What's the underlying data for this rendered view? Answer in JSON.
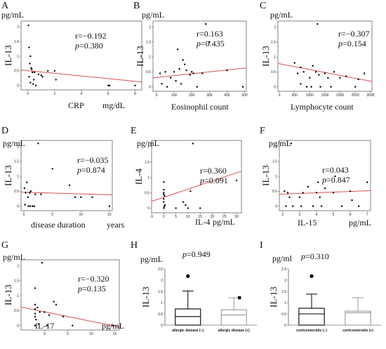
{
  "chart_data": [
    {
      "type": "scatter",
      "panel": "A",
      "ylabel": "IL-13",
      "yunit": "pg/mL",
      "xlabel": "CRP",
      "xunit": "mg/dL",
      "r": "r=−0.192",
      "p": "=0.380",
      "xlim": [
        -0.5,
        8.5
      ],
      "ylim": [
        -0.15,
        2.2
      ],
      "xticks": [
        "0",
        "2",
        "4",
        "6",
        "8"
      ],
      "yticks": [
        "0",
        "0.5",
        "1",
        "1.5",
        "2"
      ],
      "xtick_values": [
        0,
        2,
        4,
        6,
        8
      ],
      "fit": [
        [
          -0.5,
          0.53
        ],
        [
          8.5,
          0.12
        ]
      ],
      "x": [
        0.05,
        0.1,
        0.2,
        0.15,
        0.3,
        0.35,
        0.5,
        0.1,
        0.2,
        0.6,
        0.4,
        0.8,
        1.0,
        1.1,
        1.5,
        2.0,
        2.1,
        6.0,
        6.1,
        8.0,
        0.25,
        0.45
      ],
      "y": [
        2.05,
        1.3,
        1.0,
        0.75,
        0.55,
        0.45,
        0.45,
        0.3,
        0.1,
        0.0,
        0.05,
        0.38,
        0.35,
        0.3,
        0.5,
        0.5,
        0.2,
        0.0,
        0.0,
        0.0,
        0.6,
        0.2
      ]
    },
    {
      "type": "scatter",
      "panel": "B",
      "ylabel": "IL-13",
      "yunit": "pg/mL",
      "xlabel": "Eosinophil count",
      "xunit": "",
      "r": "r=0.163",
      "p": "=0.435",
      "xlim": [
        -20,
        510
      ],
      "ylim": [
        -0.15,
        2.2
      ],
      "xticks": [
        "0",
        "100",
        "200",
        "300",
        "400",
        "500"
      ],
      "yticks": [
        "0",
        "0.5",
        "1",
        "1.5",
        "2"
      ],
      "xtick_values": [
        0,
        100,
        200,
        300,
        400,
        500
      ],
      "fit": [
        [
          -20,
          0.3
        ],
        [
          510,
          0.63
        ]
      ],
      "x": [
        20,
        30,
        50,
        60,
        80,
        100,
        110,
        120,
        130,
        140,
        150,
        160,
        170,
        190,
        200,
        210,
        230,
        260,
        280,
        300,
        400,
        490
      ],
      "y": [
        0.45,
        0.1,
        0.5,
        0.0,
        0.3,
        0.5,
        0.2,
        1.25,
        0.6,
        0.1,
        0.9,
        0.75,
        0.55,
        0.4,
        0.5,
        0.45,
        0.0,
        0.45,
        2.1,
        1.5,
        0.55,
        0.0
      ]
    },
    {
      "type": "scatter",
      "panel": "C",
      "ylabel": "IL-13",
      "yunit": "pg/mL",
      "xlabel": "Lymphocyte count",
      "xunit": "",
      "r": "r=−0.307",
      "p": "=0.154",
      "xlim": [
        -50,
        3050
      ],
      "ylim": [
        -0.15,
        2.2
      ],
      "xticks": [
        "0",
        "500",
        "1000",
        "1500",
        "2000",
        "2500",
        "3000"
      ],
      "yticks": [
        "0",
        "0.5",
        "1",
        "1.5",
        "2"
      ],
      "xtick_values": [
        0,
        500,
        1000,
        1500,
        2000,
        2500,
        3000
      ],
      "fit": [
        [
          -50,
          0.78
        ],
        [
          3050,
          0.18
        ]
      ],
      "x": [
        500,
        600,
        700,
        800,
        900,
        1000,
        1100,
        1200,
        1250,
        1300,
        1350,
        1500,
        1600,
        1700,
        1800,
        2000,
        2200,
        2500,
        2600,
        2800,
        700,
        1050
      ],
      "y": [
        0.8,
        0.45,
        0.65,
        0.5,
        0.0,
        0.3,
        0.7,
        0.5,
        2.1,
        0.4,
        0.0,
        0.45,
        0.3,
        0.0,
        0.5,
        0.3,
        0.35,
        0.0,
        0.25,
        0.45,
        0.1,
        0.0
      ]
    },
    {
      "type": "scatter",
      "panel": "D",
      "ylabel": "IL-13",
      "yunit": "pg/mL",
      "xlabel": "disease duration",
      "xunit": "years",
      "r": "r=−0.035",
      "p": "=0.874",
      "xlim": [
        -0.5,
        15.5
      ],
      "ylim": [
        -0.15,
        2.2
      ],
      "xticks": [
        "0",
        "5",
        "10",
        "15"
      ],
      "yticks": [
        "0",
        "0.5",
        "1",
        "1.5",
        "2"
      ],
      "xtick_values": [
        0,
        5,
        10,
        15
      ],
      "fit": [
        [
          -0.5,
          0.47
        ],
        [
          15.5,
          0.38
        ]
      ],
      "x": [
        0.1,
        0.3,
        0.5,
        0.7,
        1.0,
        1.2,
        1.5,
        2.0,
        0.2,
        0.8,
        1.8,
        2.5,
        3.0,
        5.0,
        8.0,
        9.0,
        10.0,
        12.0,
        15.0,
        1.1
      ],
      "y": [
        0.6,
        0.45,
        0.8,
        0.3,
        0.45,
        0.5,
        0.0,
        0.4,
        0.05,
        0.0,
        0.0,
        2.1,
        0.4,
        1.25,
        0.7,
        0.3,
        0.3,
        0.3,
        0.0,
        0.0
      ]
    },
    {
      "type": "scatter",
      "panel": "E",
      "ylabel": "IL-4",
      "yunit": "pg/mL",
      "xlabel": "IL-4",
      "xunit": "pg/mL",
      "r": "r=0.360",
      "p": "=0.091",
      "xlim": [
        -5,
        32
      ],
      "ylim": [
        -0.15,
        2.2
      ],
      "xticks": [
        "-5",
        "0",
        "5",
        "10",
        "15",
        "20",
        "25",
        "30"
      ],
      "yticks": [
        "0",
        "0.5",
        "1",
        "1.5",
        "2"
      ],
      "xtick_values": [
        -5,
        0,
        5,
        10,
        15,
        20,
        25,
        30
      ],
      "fit": [
        [
          -5,
          0.22
        ],
        [
          32,
          1.2
        ]
      ],
      "x": [
        0,
        0,
        0,
        0,
        0,
        0.5,
        0,
        0,
        5,
        8,
        9,
        10,
        11,
        12,
        15,
        30,
        0.3,
        0.2
      ],
      "y": [
        0.5,
        0.45,
        0.3,
        0.2,
        0.0,
        0.1,
        0.6,
        0.85,
        0.0,
        0.2,
        0.1,
        0.0,
        0.55,
        2.1,
        0.0,
        0.9,
        0.4,
        0.05
      ]
    },
    {
      "type": "scatter",
      "panel": "F",
      "ylabel": "IL-13",
      "yunit": "pg/mL",
      "xlabel": "IL-15",
      "xunit": "pg/mL",
      "r": "r=0.043",
      "p": "=0.847",
      "xlim": [
        1.8,
        7.2
      ],
      "ylim": [
        -0.15,
        2.2
      ],
      "xticks": [
        "2",
        "3",
        "4",
        "5",
        "6",
        "7"
      ],
      "yticks": [
        "0",
        "0.5",
        "1",
        "1.5",
        "2"
      ],
      "xtick_values": [
        2,
        3,
        4,
        5,
        6,
        7
      ],
      "fit": [
        [
          1.8,
          0.4
        ],
        [
          7.2,
          0.52
        ]
      ],
      "x": [
        2.1,
        2.2,
        2.3,
        2.4,
        2.5,
        2.6,
        3.0,
        3.1,
        3.2,
        3.5,
        3.8,
        4.0,
        4.1,
        4.2,
        4.3,
        4.5,
        5.0,
        5.1,
        5.5,
        6.0,
        6.1,
        6.5,
        7.0
      ],
      "y": [
        0.5,
        0.0,
        0.45,
        0.3,
        2.1,
        0.0,
        0.3,
        0.0,
        0.45,
        0.65,
        0.0,
        0.45,
        0.8,
        0.3,
        0.0,
        0.6,
        0.45,
        1.0,
        0.0,
        0.5,
        0.2,
        0.0,
        0.8
      ]
    },
    {
      "type": "scatter",
      "panel": "G",
      "ylabel": "IL-13",
      "yunit": "pg/mL",
      "xlabel": "IL-17",
      "xunit": "pg/mL",
      "r": "r=−0.320",
      "p": "=0.135",
      "xlim": [
        -5,
        16
      ],
      "ylim": [
        -0.15,
        2.2
      ],
      "xticks": [
        "0",
        "5",
        "10",
        "15"
      ],
      "yticks": [
        "0",
        "0.5",
        "1",
        "1.5",
        "2"
      ],
      "xtick_values": [
        0,
        5,
        10,
        15
      ],
      "fit": [
        [
          -5,
          0.62
        ],
        [
          16,
          -0.05
        ]
      ],
      "x": [
        -2,
        -2,
        -2,
        -2,
        -2,
        -2,
        -1.8,
        -1.5,
        -1.0,
        -0.5,
        0,
        0.5,
        1.0,
        2.0,
        2.5,
        4.0,
        6.0,
        14.5,
        -1.2
      ],
      "y": [
        1.25,
        0.7,
        0.55,
        0.4,
        0.3,
        0.0,
        0.2,
        0.6,
        0.45,
        2.1,
        0.45,
        0.0,
        0.35,
        0.8,
        0.7,
        0.3,
        0.0,
        0.0,
        0.05
      ]
    },
    {
      "type": "box",
      "panel": "H",
      "ylabel": "IL-13",
      "yunit": "pg/mL",
      "p": "=0.949",
      "ylim": [
        0,
        2.5
      ],
      "yticks": [
        "0",
        "0.5",
        "1",
        "1.5",
        "2",
        "2.5"
      ],
      "ytick_values": [
        0,
        0.5,
        1,
        1.5,
        2,
        2.5
      ],
      "categories": [
        "allergic disease (−)",
        "allergic disease (+)"
      ],
      "boxes": [
        {
          "whisker_low": 0,
          "q1": 0,
          "median": 0.38,
          "q3": 0.72,
          "whisker_high": 1.52,
          "outliers": [
            2.18
          ],
          "outlier_marker": "circle",
          "color": "#000000"
        },
        {
          "whisker_low": 0,
          "q1": 0,
          "median": 0.45,
          "q3": 0.68,
          "whisker_high": 1.22,
          "outliers": [
            1.22
          ],
          "outlier_marker": "square",
          "color": "#999999"
        }
      ]
    },
    {
      "type": "box",
      "panel": "I",
      "ylabel": "IL-13",
      "yunit": "pg/ml",
      "p": "=0.310",
      "ylim": [
        0,
        2.5
      ],
      "yticks": [
        "0",
        "0.5",
        "1",
        "1.5",
        "2",
        "2.5"
      ],
      "ytick_values": [
        0,
        0.5,
        1,
        1.5,
        2,
        2.5
      ],
      "categories": [
        "corticosteroids (−)",
        "corticosteroids (+)"
      ],
      "boxes": [
        {
          "whisker_low": 0,
          "q1": 0,
          "median": 0.5,
          "q3": 0.75,
          "whisker_high": 1.38,
          "outliers": [
            2.18
          ],
          "outlier_marker": "circle",
          "color": "#000000"
        },
        {
          "whisker_low": 0,
          "q1": 0,
          "median": 0.55,
          "q3": 0.62,
          "whisker_high": 1.22,
          "outliers": [],
          "outlier_marker": "none",
          "color": "#999999"
        }
      ]
    }
  ],
  "colors": {
    "fit_line": "#d9534f",
    "point": "#000000",
    "box_plus": "#999999"
  }
}
